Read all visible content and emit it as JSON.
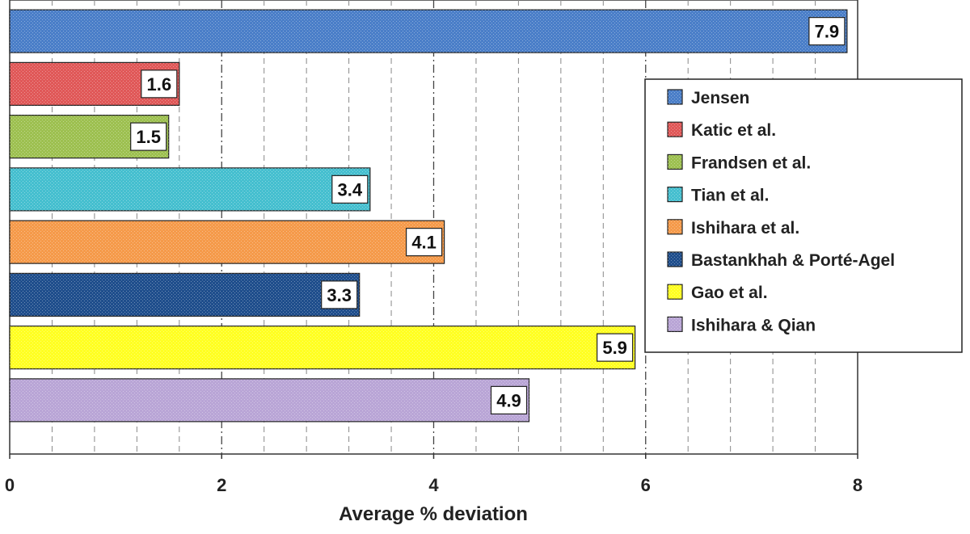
{
  "chart_data": {
    "type": "bar",
    "orientation": "horizontal",
    "categories": [
      "Jensen",
      "Katic et al.",
      "Frandsen et al.",
      "Tian et al.",
      "Ishihara et al.",
      "Bastankhah & Porté-Agel",
      "Gao et al.",
      "Ishihara & Qian"
    ],
    "values": [
      7.9,
      1.6,
      1.5,
      3.4,
      4.1,
      3.3,
      5.9,
      4.9
    ],
    "data_labels": [
      "7.9",
      "1.6",
      "1.5",
      "3.4",
      "4.1",
      "3.3",
      "5.9",
      "4.9"
    ],
    "colors": [
      "#4a7ec8",
      "#e05858",
      "#9dc050",
      "#45bfcf",
      "#f59a4a",
      "#1f4e8c",
      "#ffff22",
      "#b9a5d6"
    ],
    "xlabel": "Average % deviation",
    "xlim": [
      0,
      8
    ],
    "xticks": [
      "0",
      "2",
      "4",
      "6",
      "8"
    ],
    "grid": "vertical dashed",
    "legend_position": "right"
  }
}
